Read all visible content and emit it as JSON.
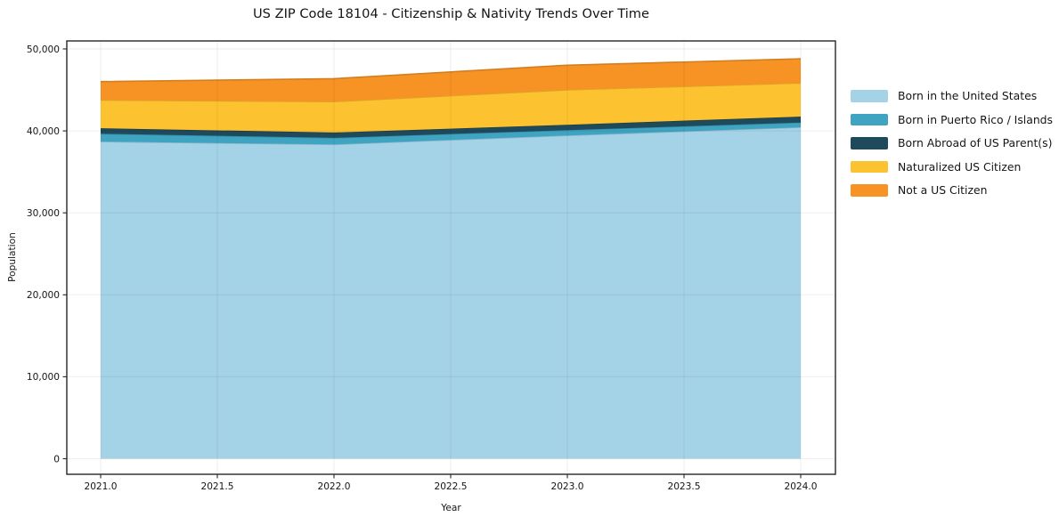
{
  "chart_data": {
    "type": "area",
    "stacked": true,
    "title": "US ZIP Code 18104 - Citizenship & Nativity Trends Over Time",
    "xlabel": "Year",
    "ylabel": "Population",
    "x": [
      2021,
      2022,
      2023,
      2024
    ],
    "series": [
      {
        "name": "Born in the United States",
        "color": "#a4d2e7",
        "values": [
          38700,
          38350,
          39450,
          40450
        ]
      },
      {
        "name": "Born in Puerto Rico / Islands",
        "color": "#3ea4c1",
        "values": [
          950,
          800,
          650,
          570
        ]
      },
      {
        "name": "Born Abroad of US Parent(s)",
        "color": "#1f4a5c",
        "values": [
          680,
          650,
          650,
          730
        ]
      },
      {
        "name": "Naturalized US Citizen",
        "color": "#fdc22f",
        "values": [
          3430,
          3770,
          4260,
          4090
        ]
      },
      {
        "name": "Not a US Citizen",
        "color": "#f79324",
        "values": [
          2260,
          2800,
          3000,
          2960
        ]
      }
    ],
    "totals": [
      46020,
      46370,
      48010,
      48800
    ],
    "ylim": [
      0,
      50000
    ],
    "xlim": [
      2021,
      2024
    ],
    "x_ticks": [
      {
        "v": 2021.0,
        "label": "2021.0"
      },
      {
        "v": 2021.5,
        "label": "2021.5"
      },
      {
        "v": 2022.0,
        "label": "2022.0"
      },
      {
        "v": 2022.5,
        "label": "2022.5"
      },
      {
        "v": 2023.0,
        "label": "2023.0"
      },
      {
        "v": 2023.5,
        "label": "2023.5"
      },
      {
        "v": 2024.0,
        "label": "2024.0"
      }
    ],
    "y_ticks": [
      {
        "v": 0,
        "label": "0"
      },
      {
        "v": 10000,
        "label": "10,000"
      },
      {
        "v": 20000,
        "label": "20,000"
      },
      {
        "v": 30000,
        "label": "30,000"
      },
      {
        "v": 40000,
        "label": "40,000"
      },
      {
        "v": 50000,
        "label": "50,000"
      }
    ],
    "grid": true,
    "legend_position": "right"
  }
}
